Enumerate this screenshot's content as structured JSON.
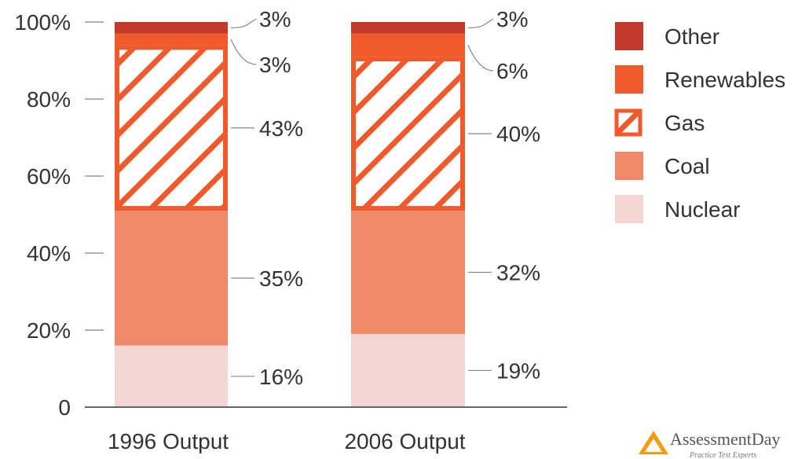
{
  "chart_data": {
    "type": "bar",
    "stacked": true,
    "title": "",
    "xlabel": "",
    "ylabel": "",
    "ylim": [
      0,
      100
    ],
    "y_ticks": [
      "0",
      "20%",
      "40%",
      "60%",
      "80%",
      "100%"
    ],
    "categories": [
      "1996 Output",
      "2006 Output"
    ],
    "series": [
      {
        "name": "Nuclear",
        "values": [
          16,
          19
        ],
        "labels": [
          "16%",
          "19%"
        ],
        "color": "#f3d6d2",
        "pattern": "solid"
      },
      {
        "name": "Coal",
        "values": [
          35,
          32
        ],
        "labels": [
          "35%",
          "32%"
        ],
        "color": "#f2886a",
        "pattern": "solid"
      },
      {
        "name": "Gas",
        "values": [
          43,
          40
        ],
        "labels": [
          "43%",
          "40%"
        ],
        "color": "#ef5a2d",
        "pattern": "hatched"
      },
      {
        "name": "Renewables",
        "values": [
          3,
          6
        ],
        "labels": [
          "3%",
          "6%"
        ],
        "color": "#ef5a2d",
        "pattern": "solid"
      },
      {
        "name": "Other",
        "values": [
          3,
          3
        ],
        "labels": [
          "3%",
          "3%"
        ],
        "color": "#c0392b",
        "pattern": "solid"
      }
    ],
    "legend_position": "right",
    "grid": false
  },
  "logo": {
    "name": "AssessmentDay",
    "tagline": "Practice Test Experts"
  }
}
